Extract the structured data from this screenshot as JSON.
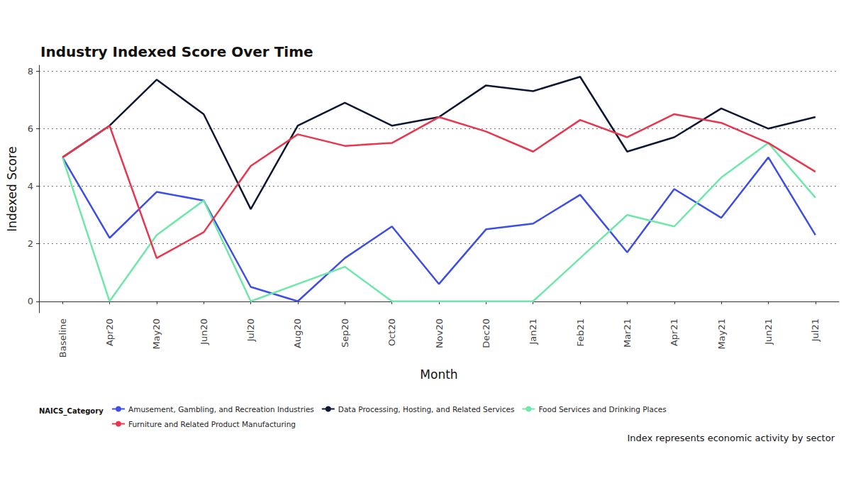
{
  "chart_data": {
    "type": "line",
    "title": "Industry Indexed Score Over Time",
    "x_label": "Month",
    "y_label": "Indexed Score",
    "legend_title": "NAICS_Category",
    "caption": "Index represents economic activity by sector",
    "categories": [
      "Baseline",
      "Apr20",
      "May20",
      "Jun20",
      "Jul20",
      "Aug20",
      "Sep20",
      "Oct20",
      "Nov20",
      "Dec20",
      "Jan21",
      "Feb21",
      "Mar21",
      "Apr21",
      "May21",
      "Jun21",
      "Jul21"
    ],
    "series": [
      {
        "name": "Amusement, Gambling, and Recreation Industries",
        "color": "#3d4ee8",
        "values": [
          5,
          2.2,
          3.8,
          3.5,
          0.5,
          0,
          1.5,
          2.6,
          0.6,
          2.5,
          2.7,
          3.7,
          1.7,
          3.9,
          2.9,
          5.0,
          2.3
        ]
      },
      {
        "name": "Data Processing, Hosting, and Related Services",
        "color": "#0d1733",
        "values": [
          5,
          6.1,
          7.7,
          6.5,
          3.2,
          6.1,
          6.9,
          6.1,
          6.4,
          7.5,
          7.3,
          7.8,
          5.2,
          5.7,
          6.7,
          6.0,
          6.4
        ]
      },
      {
        "name": "Food Services and Drinking Places",
        "color": "#6ee8a8",
        "values": [
          5,
          0,
          2.3,
          3.5,
          0,
          0.6,
          1.2,
          0,
          0,
          0,
          0,
          1.5,
          3.0,
          2.6,
          4.3,
          5.5,
          3.6
        ]
      },
      {
        "name": "Furniture and Related Product Manufacturing",
        "color": "#e8364f",
        "values": [
          5,
          6.1,
          1.5,
          2.4,
          4.7,
          5.8,
          5.4,
          5.5,
          6.4,
          5.9,
          5.2,
          6.3,
          5.7,
          6.5,
          6.2,
          5.5,
          4.5
        ]
      }
    ],
    "ylim": [
      -0.4,
      8.2
    ],
    "yticks": [
      0,
      2,
      4,
      6,
      8
    ],
    "grid": true,
    "legend": "bottom"
  }
}
